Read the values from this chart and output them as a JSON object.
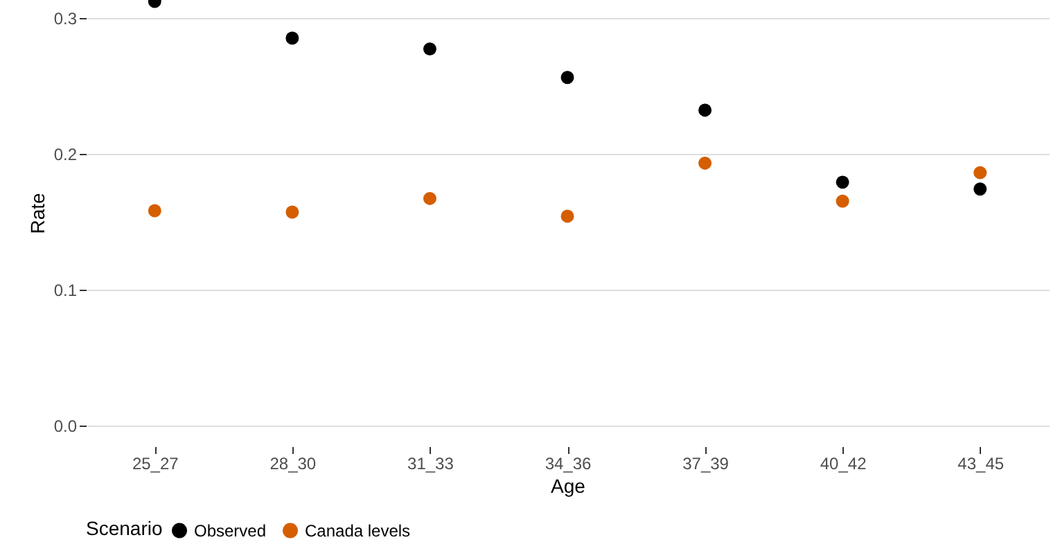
{
  "chart_data": {
    "type": "scatter",
    "xlabel": "Age",
    "ylabel": "Rate",
    "legend_title": "Scenario",
    "categories": [
      "25_27",
      "28_30",
      "31_33",
      "34_36",
      "37_39",
      "40_42",
      "43_45"
    ],
    "series": [
      {
        "name": "Observed",
        "color": "#000000",
        "values": [
          0.312,
          0.285,
          0.277,
          0.256,
          0.232,
          0.179,
          0.174
        ]
      },
      {
        "name": "Canada levels",
        "color": "#d55e00",
        "values": [
          0.158,
          0.157,
          0.167,
          0.154,
          0.193,
          0.165,
          0.186
        ]
      }
    ],
    "ylim": [
      0,
      0.313
    ],
    "yticks": [
      {
        "value": 0,
        "label": "0.0"
      },
      0.1,
      0.2,
      0.3
    ],
    "grid": "y",
    "legend": "bottom"
  }
}
